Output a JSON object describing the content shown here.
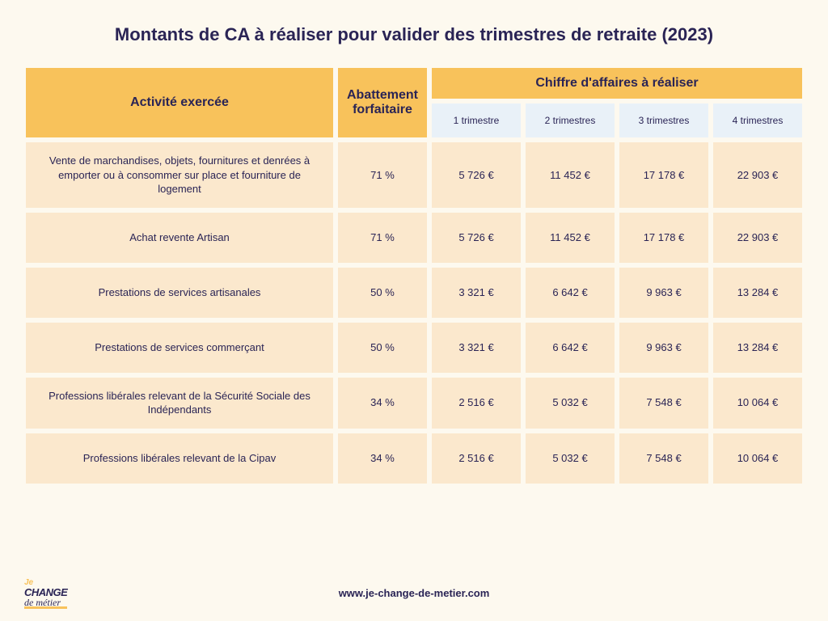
{
  "title": "Montants de CA à réaliser pour valider des trimestres de retraite (2023)",
  "headers": {
    "activity": "Activité exercée",
    "abatement": "Abattement forfaitaire",
    "revenue_group": "Chiffre d'affaires à réaliser",
    "t1": "1 trimestre",
    "t2": "2 trimestres",
    "t3": "3 trimestres",
    "t4": "4 trimestres"
  },
  "rows": [
    {
      "activity": "Vente de marchandises, objets, fournitures et denrées à emporter ou à consommer sur place et fourniture de logement",
      "abatement": "71 %",
      "t1": "5 726 €",
      "t2": "11 452 €",
      "t3": "17 178 €",
      "t4": "22 903 €"
    },
    {
      "activity": "Achat revente Artisan",
      "abatement": "71 %",
      "t1": "5 726 €",
      "t2": "11 452 €",
      "t3": "17 178 €",
      "t4": "22 903 €"
    },
    {
      "activity": "Prestations de services artisanales",
      "abatement": "50 %",
      "t1": "3 321 €",
      "t2": "6 642 €",
      "t3": "9 963 €",
      "t4": "13 284 €"
    },
    {
      "activity": "Prestations de services commerçant",
      "abatement": "50 %",
      "t1": "3 321 €",
      "t2": "6 642 €",
      "t3": "9 963 €",
      "t4": "13 284 €"
    },
    {
      "activity": "Professions libérales relevant de la Sécurité Sociale des Indépendants",
      "abatement": "34 %",
      "t1": "2 516 €",
      "t2": "5 032 €",
      "t3": "7 548 €",
      "t4": "10 064 €"
    },
    {
      "activity": "Professions libérales relevant de la Cipav",
      "abatement": "34 %",
      "t1": "2 516 €",
      "t2": "5 032 €",
      "t3": "7 548 €",
      "t4": "10 064 €"
    }
  ],
  "footer": {
    "url": "www.je-change-de-metier.com",
    "logo_je": "Je",
    "logo_change": "CHANGE",
    "logo_de": "de",
    "logo_metier": "métier"
  },
  "colors": {
    "background": "#fdf9ef",
    "header_bg": "#f8c25b",
    "subheader_bg": "#e9f1f8",
    "cell_bg": "#fbe8cd",
    "text": "#2a2455"
  }
}
